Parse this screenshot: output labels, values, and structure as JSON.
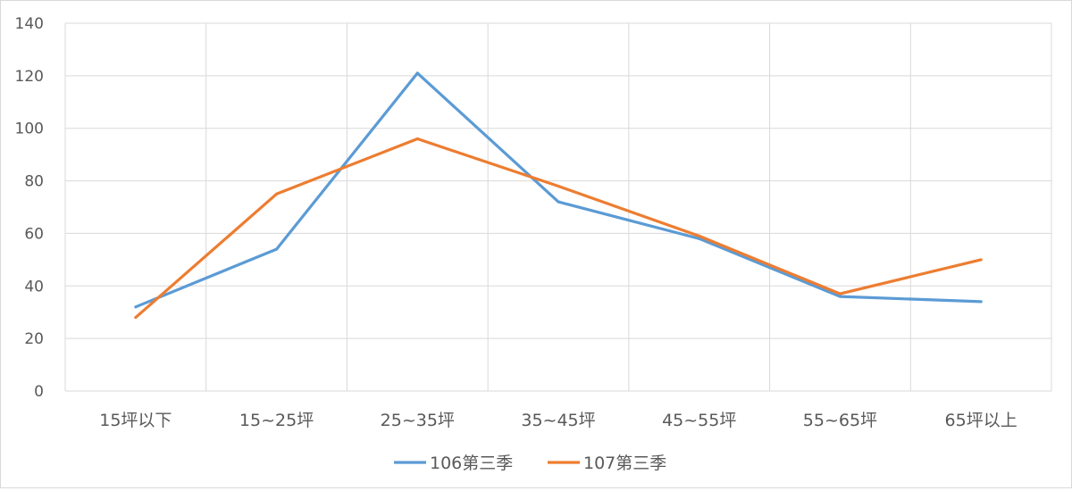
{
  "chart_data": {
    "type": "line",
    "title": "",
    "xlabel": "",
    "ylabel": "",
    "categories": [
      "15坪以下",
      "15~25坪",
      "25~35坪",
      "35~45坪",
      "45~55坪",
      "55~65坪",
      "65坪以上"
    ],
    "ylim": [
      0,
      140
    ],
    "yticks": [
      0,
      20,
      40,
      60,
      80,
      100,
      120,
      140
    ],
    "grid": true,
    "legend_position": "bottom",
    "series": [
      {
        "name": "106第三季",
        "color": "#5b9bd5",
        "values": [
          32,
          54,
          121,
          72,
          58,
          36,
          34
        ]
      },
      {
        "name": "107第三季",
        "color": "#ed7d31",
        "values": [
          28,
          75,
          96,
          78,
          59,
          37,
          50
        ]
      }
    ]
  }
}
